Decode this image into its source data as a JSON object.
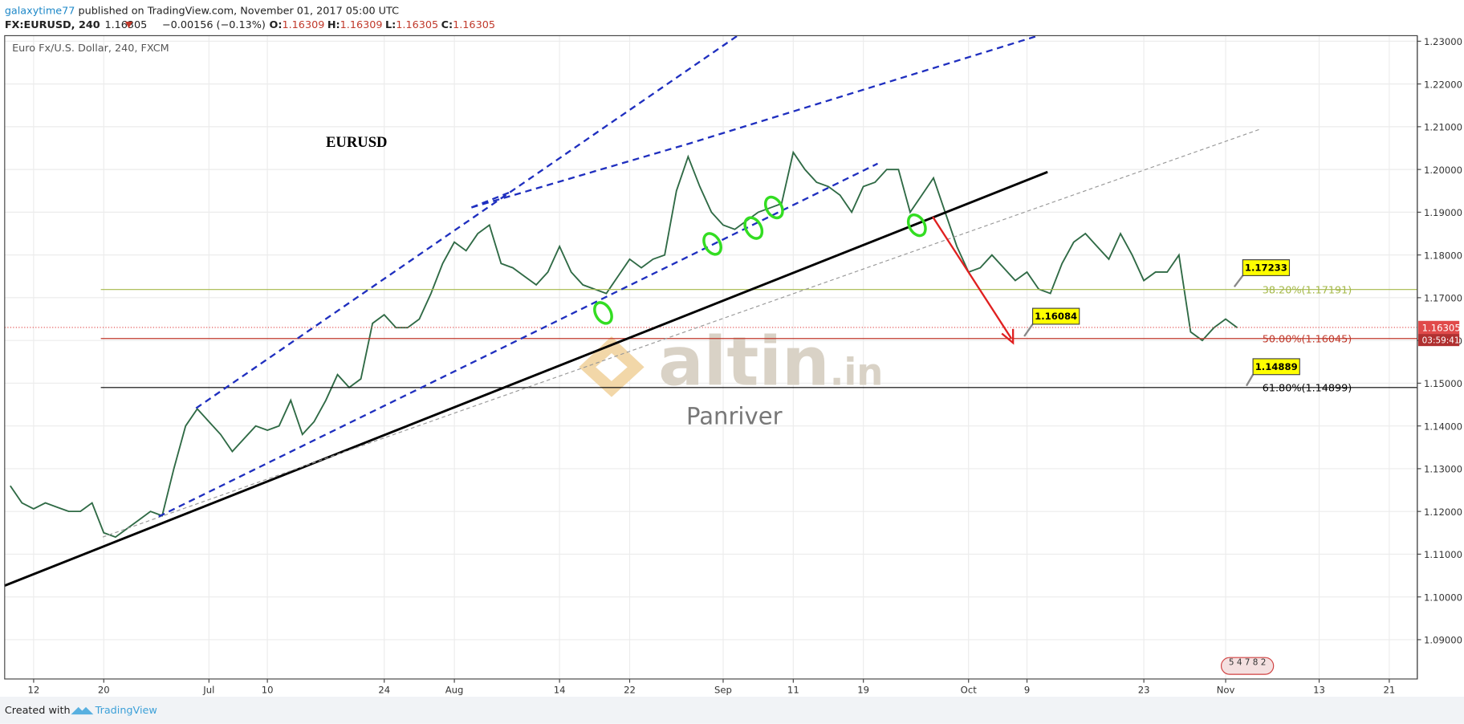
{
  "header": {
    "user": "galaxytime77",
    "published": " published on TradingView.com, November 01, 2017 05:00 UTC",
    "symbol": "FX:EURUSD, 240",
    "last": "1.16305",
    "change": "−0.00156 (−0.13%)",
    "o_label": "O:",
    "o": "1.16309",
    "h_label": "H:",
    "h": "1.16309",
    "l_label": "L:",
    "l": "1.16305",
    "c_label": "C:",
    "c": "1.16305"
  },
  "chart_data": {
    "type": "line",
    "title": "Euro Fx/U.S. Dollar, 240, FXCM",
    "color": "#2f6a45",
    "x": [
      -2,
      -1,
      0,
      1,
      2,
      3,
      4,
      5,
      6,
      7,
      8,
      9,
      10,
      11,
      12,
      13,
      14,
      15,
      16,
      17,
      18,
      19,
      20,
      21,
      22,
      23,
      24,
      25,
      26,
      27,
      28,
      29,
      30,
      31,
      32,
      33,
      34,
      35,
      36,
      37,
      38,
      39,
      40,
      41,
      42,
      43,
      44,
      45,
      46,
      47,
      48,
      49,
      50,
      51,
      52,
      53,
      54,
      55,
      56,
      57,
      58,
      59,
      60,
      61,
      62,
      63,
      64,
      65,
      66,
      67,
      68,
      69,
      70,
      71,
      72,
      73,
      74,
      75,
      76,
      77,
      78,
      79,
      80,
      81,
      82,
      83,
      84,
      85,
      86,
      87,
      88,
      89,
      90,
      91,
      92,
      93,
      94,
      95,
      96,
      97,
      98,
      99,
      100,
      101,
      102,
      103
    ],
    "values": [
      1.126,
      1.122,
      1.1206,
      1.122,
      1.121,
      1.12,
      1.12,
      1.122,
      1.115,
      1.114,
      1.116,
      1.118,
      1.12,
      1.119,
      1.13,
      1.14,
      1.144,
      1.141,
      1.138,
      1.134,
      1.137,
      1.14,
      1.139,
      1.14,
      1.146,
      1.138,
      1.141,
      1.146,
      1.152,
      1.149,
      1.151,
      1.164,
      1.166,
      1.163,
      1.163,
      1.165,
      1.171,
      1.178,
      1.183,
      1.181,
      1.185,
      1.187,
      1.178,
      1.177,
      1.175,
      1.173,
      1.176,
      1.182,
      1.176,
      1.173,
      1.172,
      1.171,
      1.175,
      1.179,
      1.177,
      1.179,
      1.18,
      1.195,
      1.203,
      1.196,
      1.19,
      1.187,
      1.186,
      1.188,
      1.19,
      1.191,
      1.192,
      1.204,
      1.2,
      1.197,
      1.196,
      1.194,
      1.19,
      1.196,
      1.197,
      1.2,
      1.2,
      1.19,
      1.194,
      1.198,
      1.19,
      1.182,
      1.176,
      1.177,
      1.18,
      1.177,
      1.174,
      1.176,
      1.172,
      1.171,
      1.178,
      1.183,
      1.185,
      1.182,
      1.179,
      1.185,
      1.18,
      1.174,
      1.176,
      1.176,
      1.18,
      1.162,
      1.16,
      1.163,
      1.165,
      1.163
    ],
    "xlim": [
      -2.48,
      118.4
    ],
    "ylim": [
      1.0808,
      1.2313
    ],
    "xticks": [
      {
        "value": 0,
        "label": "12"
      },
      {
        "value": 6,
        "label": "20"
      },
      {
        "value": 15,
        "label": "Jul"
      },
      {
        "value": 20,
        "label": "10"
      },
      {
        "value": 30,
        "label": "24"
      },
      {
        "value": 36,
        "label": "Aug"
      },
      {
        "value": 45,
        "label": "14"
      },
      {
        "value": 51,
        "label": "22"
      },
      {
        "value": 59,
        "label": "Sep"
      },
      {
        "value": 65,
        "label": "11"
      },
      {
        "value": 71,
        "label": "19"
      },
      {
        "value": 80,
        "label": "Oct"
      },
      {
        "value": 85,
        "label": "9"
      },
      {
        "value": 95,
        "label": "23"
      },
      {
        "value": 102,
        "label": "Nov"
      },
      {
        "value": 110,
        "label": "13"
      },
      {
        "value": 116,
        "label": "21"
      }
    ],
    "yticks": [
      {
        "value": 1.09,
        "label": "1.09000"
      },
      {
        "value": 1.1,
        "label": "1.10000"
      },
      {
        "value": 1.11,
        "label": "1.11000"
      },
      {
        "value": 1.12,
        "label": "1.12000"
      },
      {
        "value": 1.13,
        "label": "1.13000"
      },
      {
        "value": 1.14,
        "label": "1.14000"
      },
      {
        "value": 1.15,
        "label": "1.15000"
      },
      {
        "value": 1.16,
        "label": "1.16000"
      },
      {
        "value": 1.17,
        "label": "1.17000"
      },
      {
        "value": 1.18,
        "label": "1.18000"
      },
      {
        "value": 1.19,
        "label": "1.19000"
      },
      {
        "value": 1.2,
        "label": "1.20000"
      },
      {
        "value": 1.21,
        "label": "1.21000"
      },
      {
        "value": 1.22,
        "label": "1.22000"
      },
      {
        "value": 1.23,
        "label": "1.23000"
      }
    ],
    "grid": true,
    "fib_levels": [
      {
        "value": 1.17191,
        "label": "38.20%(1.17191)",
        "color": "#a4b848"
      },
      {
        "value": 1.16045,
        "label": "50.00%(1.16045)",
        "color": "#c0392b"
      },
      {
        "value": 1.14899,
        "label": "61.80%(1.14899)",
        "color": "#000000"
      }
    ],
    "last_price": 1.16305,
    "countdown": "03:59:41",
    "callouts": [
      "1.17233",
      "1.16084",
      "1.14889"
    ],
    "annotation": "EURUSD",
    "watermark": "altin",
    "watermark_suffix": ".in",
    "watermark_author": "Panriver",
    "event_markers": "5 4 7 8 2"
  },
  "footer": {
    "created": "Created with",
    "brand": "TradingView"
  }
}
